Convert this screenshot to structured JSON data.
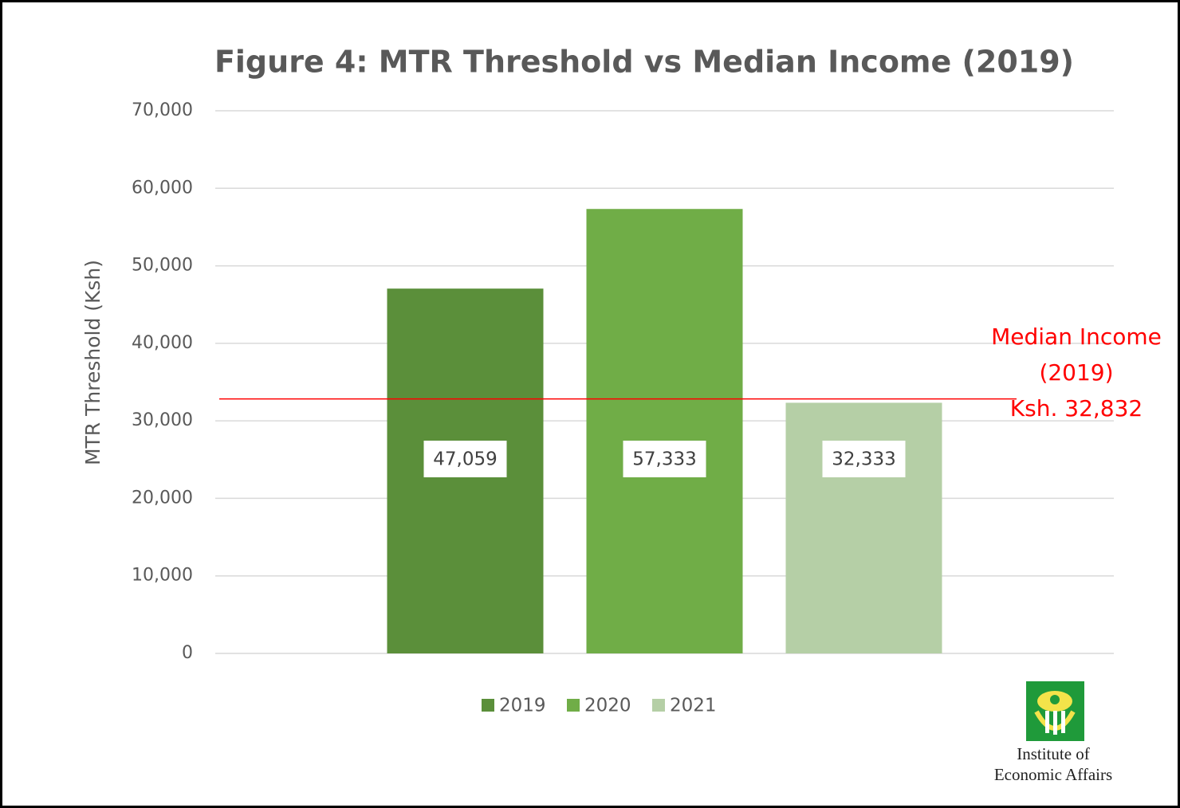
{
  "chart_data": {
    "type": "bar",
    "title": "Figure 4: MTR Threshold vs Median Income (2019)",
    "y_label": "MTR Threshold (Ksh)",
    "categories": [
      null
    ],
    "series": [
      {
        "name": "2019",
        "color": "#5b8f3a",
        "values": [
          47059
        ],
        "value_labels": [
          "47,059"
        ]
      },
      {
        "name": "2020",
        "color": "#70ad47",
        "values": [
          57333
        ],
        "value_labels": [
          "57,333"
        ]
      },
      {
        "name": "2021",
        "color": "#b5cfa6",
        "values": [
          32333
        ],
        "value_labels": [
          "32,333"
        ]
      }
    ],
    "ylim": [
      0,
      70000
    ],
    "yticks": [
      0,
      {
        "value": 10000,
        "label": "10,000"
      },
      {
        "value": 20000,
        "label": "20,000"
      },
      {
        "value": 30000,
        "label": "30,000"
      },
      {
        "value": 40000,
        "label": "40,000"
      },
      {
        "value": 50000,
        "label": "50,000"
      },
      {
        "value": 60000,
        "label": "60,000"
      },
      {
        "value": 70000,
        "label": "70,000"
      }
    ],
    "grid": true,
    "legend": "bottom",
    "reference_line": {
      "value": 32832,
      "color": "#ff0000",
      "label_lines": [
        "Median Income",
        "(2019)",
        "Ksh. 32,832"
      ]
    }
  },
  "logo": {
    "lines": [
      "Institute of",
      "Economic Affairs"
    ]
  }
}
